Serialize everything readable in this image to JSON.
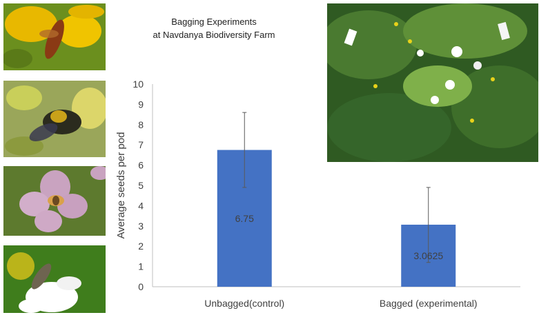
{
  "title_lines": [
    "Bagging Experiments",
    "at Navdanya Biodiversity Farm"
  ],
  "photos": [
    {
      "name": "yellow-flower-insect-photo",
      "palette": [
        "#e8b800",
        "#6b8f1e",
        "#8a3a14"
      ]
    },
    {
      "name": "carpenter-bee-photo",
      "palette": [
        "#c9cf5a",
        "#2b2b1e",
        "#e0d86a"
      ]
    },
    {
      "name": "pink-flower-bee-photo",
      "palette": [
        "#5d7a2e",
        "#c9a3c0",
        "#d9a14a"
      ]
    },
    {
      "name": "white-flower-bee-photo",
      "palette": [
        "#3f7d1c",
        "#ffffff",
        "#d9c21a"
      ]
    },
    {
      "name": "bagged-plants-field-photo",
      "palette": [
        "#2f5a22",
        "#7fb04a",
        "#ffffff"
      ]
    }
  ],
  "chart_data": {
    "type": "bar",
    "title": "Bagging Experiments at Navdanya Biodiversity Farm",
    "categories": [
      "Unbagged(control)",
      "Bagged (experimental)"
    ],
    "values": [
      6.75,
      3.0625
    ],
    "value_labels": [
      "6.75",
      "3.0625"
    ],
    "error_bars": [
      {
        "low": 4.9,
        "high": 8.6
      },
      {
        "low": 1.2,
        "high": 4.9
      }
    ],
    "ylabel": "Average seeds per pod",
    "xlabel": "",
    "ylim": [
      0,
      10
    ],
    "yticks": [
      0,
      1,
      2,
      3,
      4,
      5,
      6,
      7,
      8,
      9,
      10
    ],
    "bar_color": "#4472c4",
    "grid": false,
    "legend": "none"
  }
}
